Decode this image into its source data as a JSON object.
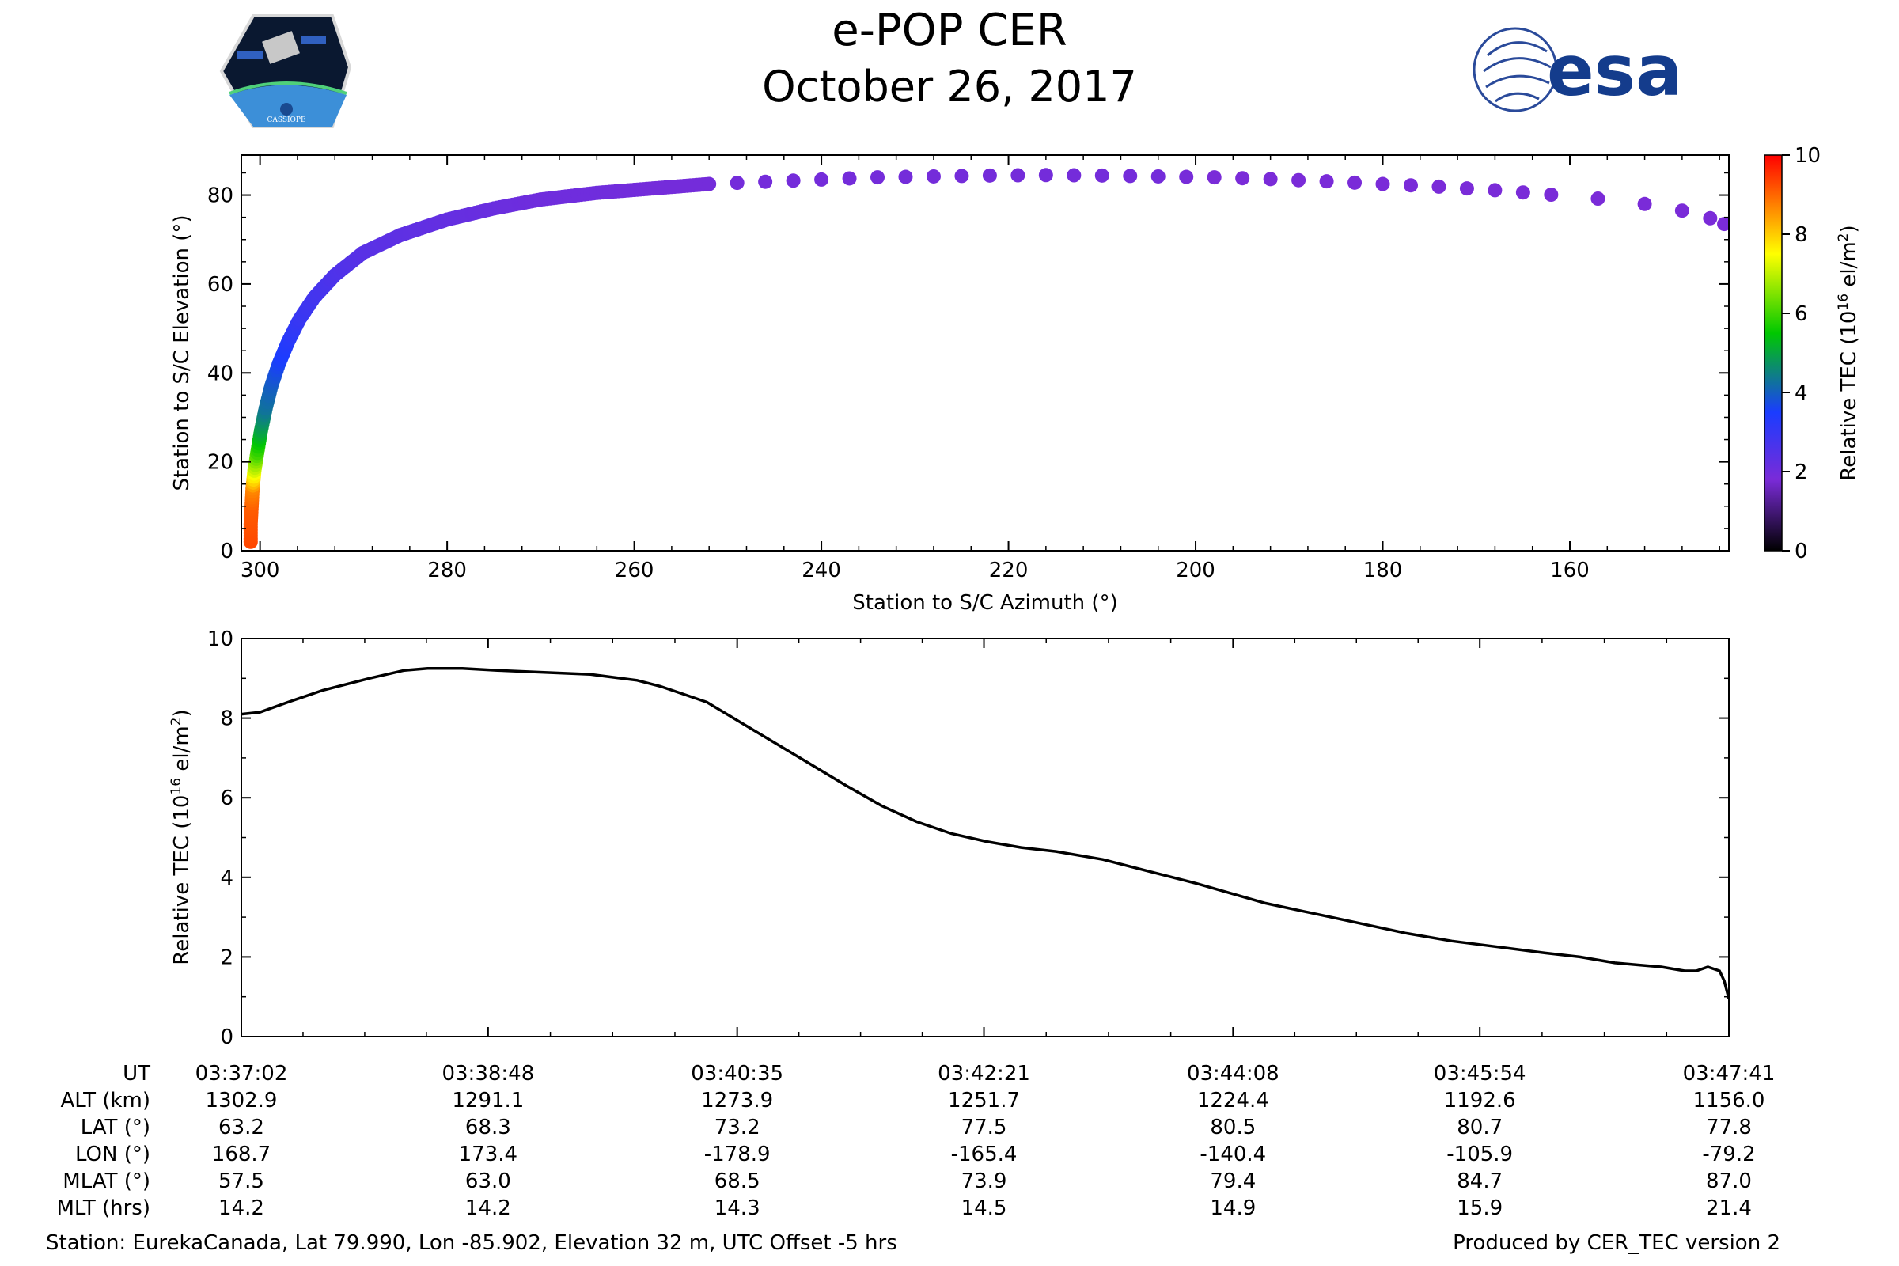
{
  "header": {
    "title": "e-POP CER",
    "date": "October 26, 2017",
    "cassiope_logo_text": "CASSIOPE",
    "esa_logo_text": "esa"
  },
  "footer": {
    "station": "Station: EurekaCanada, Lat 79.990, Lon -85.902, Elevation 32 m, UTC Offset -5 hrs",
    "produced_by": "Produced by CER_TEC version 2"
  },
  "colors": {
    "line": "#000000",
    "colormap": [
      "#000000",
      "#7a2bd8",
      "#1a3cff",
      "#00c800",
      "#ffff00",
      "#ff0000"
    ]
  },
  "chart_data": [
    {
      "type": "scatter",
      "xlabel": "Station to S/C Azimuth (°)",
      "ylabel": "Station to S/C Elevation (°)",
      "xlim": [
        302,
        143
      ],
      "ylim": [
        0,
        89
      ],
      "x_ticks": [
        300,
        280,
        260,
        240,
        220,
        200,
        180,
        160
      ],
      "y_ticks": [
        0,
        20,
        40,
        60,
        80
      ],
      "colorbar": {
        "label": "Relative TEC (10",
        "label_sup": "16",
        "label_end": " el/m",
        "label_sup2": "2",
        "label_close": ")",
        "range": [
          0,
          10
        ],
        "ticks": [
          0,
          2,
          4,
          6,
          8,
          10
        ]
      },
      "points": [
        [
          301.0,
          2,
          9.3
        ],
        [
          301.0,
          6,
          9.2
        ],
        [
          300.9,
          10,
          9.1
        ],
        [
          300.8,
          14,
          8.7
        ],
        [
          300.6,
          18,
          7.2
        ],
        [
          300.3,
          22,
          6.0
        ],
        [
          299.9,
          27,
          5.0
        ],
        [
          299.4,
          32,
          4.3
        ],
        [
          298.8,
          37,
          4.0
        ],
        [
          298.0,
          42,
          3.6
        ],
        [
          297.0,
          47,
          3.3
        ],
        [
          295.8,
          52,
          3.0
        ],
        [
          294.2,
          57,
          2.8
        ],
        [
          292.0,
          62,
          2.6
        ],
        [
          289.0,
          67,
          2.4
        ],
        [
          285.0,
          71,
          2.3
        ],
        [
          280.0,
          74.5,
          2.2
        ],
        [
          275.0,
          77,
          2.1
        ],
        [
          270.0,
          79,
          2.0
        ],
        [
          264.0,
          80.5,
          2.0
        ],
        [
          258.0,
          81.5,
          1.9
        ],
        [
          252.0,
          82.5,
          1.9
        ],
        [
          246.0,
          83.0,
          1.9
        ],
        [
          240.0,
          83.5,
          1.9
        ],
        [
          234.0,
          84.0,
          1.9
        ],
        [
          228.0,
          84.2,
          1.9
        ],
        [
          222.0,
          84.4,
          1.9
        ],
        [
          216.0,
          84.5,
          1.9
        ],
        [
          210.0,
          84.4,
          1.9
        ],
        [
          204.0,
          84.2,
          1.9
        ],
        [
          198.0,
          84.0,
          1.8
        ],
        [
          192.0,
          83.6,
          1.8
        ],
        [
          186.0,
          83.1,
          1.8
        ],
        [
          180.0,
          82.5,
          1.8
        ],
        [
          174.0,
          81.9,
          1.8
        ],
        [
          168.0,
          81.1,
          1.8
        ],
        [
          162.0,
          80.1,
          1.8
        ],
        [
          157.0,
          79.2,
          1.8
        ],
        [
          152.0,
          78.0,
          1.8
        ],
        [
          148.0,
          76.5,
          1.8
        ],
        [
          145.0,
          74.8,
          1.8
        ],
        [
          143.5,
          73.5,
          1.8
        ]
      ]
    },
    {
      "type": "line",
      "ylabel": "Relative TEC (10",
      "ylabel_sup": "16",
      "ylabel_end": " el/m",
      "ylabel_sup2": "2",
      "ylabel_close": ")",
      "xlim": [
        0,
        639
      ],
      "ylim": [
        0,
        10
      ],
      "y_ticks": [
        0,
        2,
        4,
        6,
        8,
        10
      ],
      "x_tick_positions": [
        0,
        106,
        213,
        319,
        426,
        532,
        639
      ],
      "x": [
        0,
        8,
        20,
        35,
        55,
        70,
        80,
        95,
        110,
        130,
        150,
        170,
        180,
        190,
        200,
        220,
        240,
        260,
        275,
        290,
        305,
        320,
        335,
        350,
        370,
        390,
        410,
        425,
        440,
        460,
        480,
        500,
        520,
        540,
        560,
        575,
        590,
        600,
        610,
        615,
        620,
        625,
        630,
        635,
        637,
        639
      ],
      "y": [
        8.1,
        8.15,
        8.4,
        8.7,
        9.0,
        9.2,
        9.25,
        9.25,
        9.2,
        9.15,
        9.1,
        8.95,
        8.8,
        8.6,
        8.4,
        7.7,
        7.0,
        6.3,
        5.8,
        5.4,
        5.1,
        4.9,
        4.75,
        4.65,
        4.45,
        4.15,
        3.85,
        3.6,
        3.35,
        3.1,
        2.85,
        2.6,
        2.4,
        2.25,
        2.1,
        2.0,
        1.85,
        1.8,
        1.75,
        1.7,
        1.65,
        1.65,
        1.75,
        1.65,
        1.4,
        0.95
      ],
      "table": {
        "row_labels": [
          "UT",
          "ALT (km)",
          "LAT (°)",
          "LON (°)",
          "MLAT (°)",
          "MLT (hrs)"
        ],
        "columns": [
          [
            "03:37:02",
            "1302.9",
            "63.2",
            "168.7",
            "57.5",
            "14.2"
          ],
          [
            "03:38:48",
            "1291.1",
            "68.3",
            "173.4",
            "63.0",
            "14.2"
          ],
          [
            "03:40:35",
            "1273.9",
            "73.2",
            "-178.9",
            "68.5",
            "14.3"
          ],
          [
            "03:42:21",
            "1251.7",
            "77.5",
            "-165.4",
            "73.9",
            "14.5"
          ],
          [
            "03:44:08",
            "1224.4",
            "80.5",
            "-140.4",
            "79.4",
            "14.9"
          ],
          [
            "03:45:54",
            "1192.6",
            "80.7",
            "-105.9",
            "84.7",
            "15.9"
          ],
          [
            "03:47:41",
            "1156.0",
            "77.8",
            "-79.2",
            "87.0",
            "21.4"
          ]
        ]
      }
    }
  ]
}
